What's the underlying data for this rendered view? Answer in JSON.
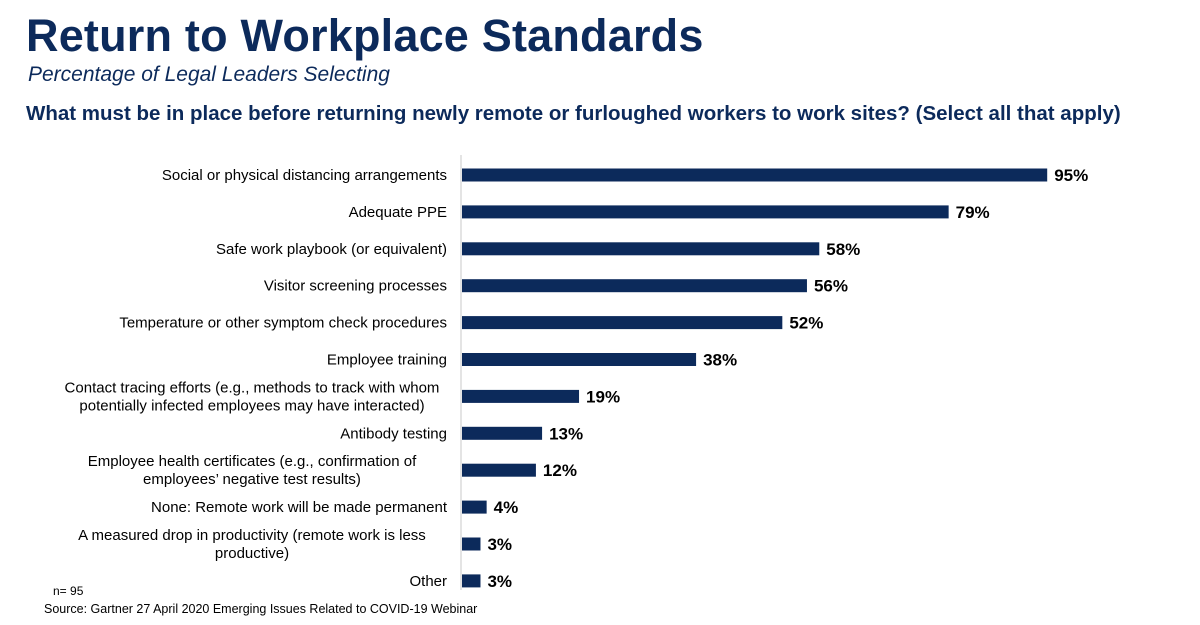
{
  "header": {
    "title": "Return to Workplace Standards",
    "subtitle": "Percentage of Legal Leaders Selecting",
    "question": "What must be in place before returning newly remote or furloughed workers to work sites? (Select all that apply)"
  },
  "footer": {
    "sample_size": "n= 95",
    "source": "Source: Gartner 27 April 2020 Emerging Issues Related to COVID-19 Webinar"
  },
  "colors": {
    "bar": "#0c2a5b",
    "axis": "#c8c8c8",
    "text": "#000000"
  },
  "chart_data": {
    "type": "bar",
    "orientation": "horizontal",
    "categories": [
      [
        "Social or physical distancing arrangements"
      ],
      [
        "Adequate PPE"
      ],
      [
        "Safe work playbook (or equivalent)"
      ],
      [
        "Visitor screening processes"
      ],
      [
        "Temperature or other symptom check procedures"
      ],
      [
        "Employee training"
      ],
      [
        "Contact tracing efforts (e.g., methods to track with whom",
        "potentially infected employees may have interacted)"
      ],
      [
        "Antibody testing"
      ],
      [
        "Employee health certificates (e.g., confirmation of",
        "employees’ negative test results)"
      ],
      [
        "None: Remote work will be made permanent"
      ],
      [
        "A measured drop in productivity (remote work is less",
        "productive)"
      ],
      [
        "Other"
      ]
    ],
    "values": [
      95,
      79,
      58,
      56,
      52,
      38,
      19,
      13,
      12,
      4,
      3,
      3
    ],
    "value_labels": [
      "95%",
      "79%",
      "58%",
      "56%",
      "52%",
      "38%",
      "19%",
      "13%",
      "12%",
      "4%",
      "3%",
      "3%"
    ],
    "xlim": [
      0,
      100
    ],
    "grid": false,
    "legend": "none"
  }
}
